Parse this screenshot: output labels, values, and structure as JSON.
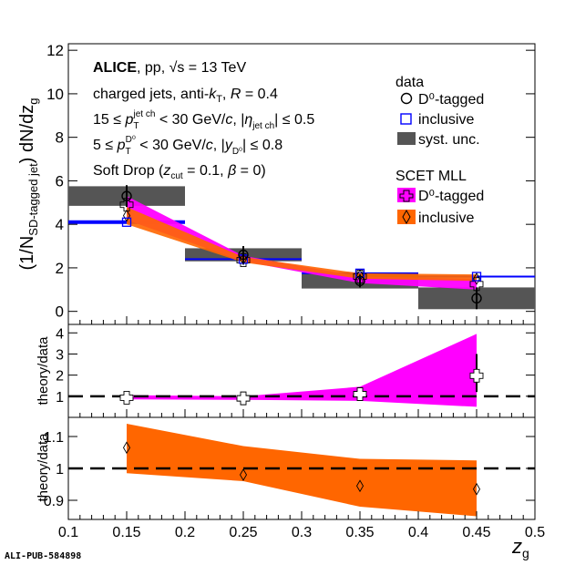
{
  "colors": {
    "d0_band": "#ff00ff",
    "incl_band": "#ff6600",
    "incl_data": "#0000ff",
    "syst": "#555555",
    "axis": "#000000"
  },
  "legend": {
    "data_header": "data",
    "d0_label": "D⁰-tagged",
    "incl_label": "inclusive",
    "syst_label": "syst. unc.",
    "theory_header": "SCET MLL",
    "theory_d0_label": "D⁰-tagged",
    "theory_incl_label": "inclusive"
  },
  "annotations": {
    "line1_bold": "ALICE",
    "line1_rest": ", pp, √s = 13 TeV",
    "line2": "charged jets, anti-kT, R = 0.4",
    "line3": "15 ≤ pT jet ch < 30 GeV/c, |ηjet ch| ≤ 0.5",
    "line4": "5 ≤ pT D0 < 30 GeV/c, |yD0| ≤ 0.8",
    "line5": "Soft Drop (zcut = 0.1, β = 0)"
  },
  "footer_id": "ALI-PUB-584898",
  "chart_data": [
    {
      "type": "scatter",
      "panel": "main",
      "ylabel": "(1/N_SD-tagged jet) dN/dz_g",
      "xlabel": "z_g",
      "xlim": [
        0.1,
        0.5
      ],
      "ylim": [
        -0.6,
        12.3
      ],
      "yticks": [
        0,
        2,
        4,
        6,
        8,
        10,
        12
      ],
      "x": [
        0.15,
        0.25,
        0.35,
        0.45
      ],
      "bin_edges": [
        0.1,
        0.2,
        0.3,
        0.4,
        0.5
      ],
      "series": [
        {
          "name": "D⁰-tagged",
          "values": [
            5.3,
            2.6,
            1.4,
            0.6
          ],
          "stat_err": [
            0.5,
            0.4,
            0.3,
            0.5
          ],
          "syst_err": [
            0.45,
            0.3,
            0.35,
            0.5
          ]
        },
        {
          "name": "inclusive",
          "values": [
            4.1,
            2.4,
            1.75,
            1.6
          ],
          "stat_err": [
            0.05,
            0.05,
            0.05,
            0.05
          ]
        }
      ],
      "theory": [
        {
          "name": "D⁰-tagged",
          "x": [
            0.15,
            0.25,
            0.35,
            0.45
          ],
          "low": [
            4.2,
            2.3,
            1.3,
            1.0
          ],
          "high": [
            5.3,
            2.55,
            1.6,
            1.5
          ],
          "markers": [
            4.9,
            2.35,
            1.6,
            1.25
          ]
        },
        {
          "name": "inclusive",
          "x": [
            0.15,
            0.25,
            0.35,
            0.45
          ],
          "low": [
            4.0,
            2.25,
            1.5,
            1.4
          ],
          "high": [
            4.8,
            2.5,
            1.75,
            1.7
          ],
          "markers": [
            4.4,
            2.4,
            1.65,
            1.5
          ]
        }
      ]
    },
    {
      "type": "scatter",
      "panel": "ratio_d0",
      "ylabel": "theory/data",
      "xlim": [
        0.1,
        0.5
      ],
      "ylim": [
        0,
        4.4
      ],
      "yticks": [
        1,
        2,
        3,
        4
      ],
      "x": [
        0.15,
        0.25,
        0.35,
        0.45
      ],
      "values": [
        0.93,
        0.9,
        1.1,
        1.97
      ],
      "band_low": [
        0.85,
        0.83,
        0.78,
        0.5
      ],
      "band_high": [
        1.05,
        1.0,
        1.45,
        3.95
      ],
      "reference_line": 1
    },
    {
      "type": "scatter",
      "panel": "ratio_inclusive",
      "ylabel": "theory/data",
      "xlabel": "z_g",
      "xlim": [
        0.1,
        0.5
      ],
      "ylim": [
        0.84,
        1.16
      ],
      "yticks": [
        0.9,
        1,
        1.1
      ],
      "xticks": [
        0.1,
        0.15,
        0.2,
        0.25,
        0.3,
        0.35,
        0.4,
        0.45,
        0.5
      ],
      "x": [
        0.15,
        0.25,
        0.35,
        0.45
      ],
      "values": [
        1.065,
        0.98,
        0.945,
        0.935
      ],
      "band_low": [
        0.985,
        0.96,
        0.88,
        0.85
      ],
      "band_high": [
        1.14,
        1.07,
        1.03,
        1.025
      ],
      "reference_line": 1
    }
  ]
}
